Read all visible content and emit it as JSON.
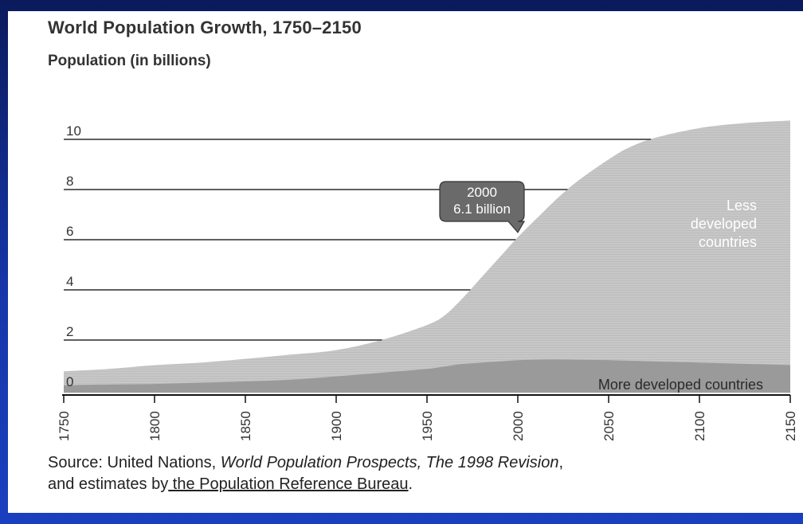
{
  "chart_data": {
    "type": "area",
    "title": "World Population Growth, 1750–2150",
    "ylabel": "Population (in billions)",
    "xlabel": "",
    "xlim": [
      1750,
      2150
    ],
    "ylim": [
      0,
      10
    ],
    "x_ticks": [
      1750,
      1800,
      1850,
      1900,
      1950,
      2000,
      2050,
      2100,
      2150
    ],
    "y_ticks": [
      0,
      2,
      4,
      6,
      8,
      10
    ],
    "grid": "horizontal",
    "x": [
      1750,
      1775,
      1800,
      1825,
      1850,
      1875,
      1900,
      1925,
      1950,
      1960,
      1970,
      1980,
      1990,
      2000,
      2010,
      2020,
      2030,
      2040,
      2050,
      2060,
      2075,
      2100,
      2125,
      2150
    ],
    "series": [
      {
        "name": "More developed countries",
        "values": [
          0.2,
          0.23,
          0.25,
          0.3,
          0.35,
          0.42,
          0.55,
          0.7,
          0.85,
          0.95,
          1.05,
          1.1,
          1.15,
          1.2,
          1.22,
          1.23,
          1.22,
          1.21,
          1.2,
          1.18,
          1.15,
          1.1,
          1.05,
          1.0
        ]
      },
      {
        "name": "Less developed countries",
        "values": [
          0.55,
          0.62,
          0.75,
          0.8,
          0.9,
          1.0,
          1.05,
          1.3,
          1.75,
          2.05,
          2.65,
          3.4,
          4.15,
          4.9,
          5.6,
          6.3,
          6.95,
          7.5,
          8.0,
          8.45,
          8.9,
          9.35,
          9.6,
          9.75
        ]
      }
    ],
    "annotations": [
      {
        "x": 2000,
        "y": 6.1,
        "lines": [
          "2000",
          "6.1 billion"
        ]
      }
    ],
    "area_labels": {
      "less": [
        "Less",
        "developed",
        "countries"
      ],
      "more": "More developed countries"
    },
    "colors": {
      "less_developed": "#c4c4c4",
      "more_developed": "#9a9a9a",
      "callout": "#6a6a6a",
      "gridline": "#222222"
    }
  },
  "source": {
    "prefix": "Source: United Nations, ",
    "italic": "World Population Prospects, The 1998 Revision",
    "middle": ",",
    "line2_start": "and estimates by",
    "line2_underlined": " the Population Reference Bureau",
    "line2_end": "."
  }
}
